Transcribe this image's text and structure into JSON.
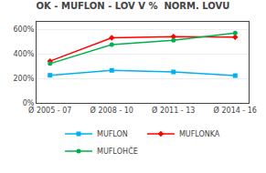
{
  "chart_data": {
    "type": "line",
    "title": "OK - MUFLON - LOV V %  NORM. LOVU",
    "categories": [
      "Ø 2005 - 07",
      "Ø 2008 - 10",
      "Ø 2011 - 13",
      "Ø 2014 - 16"
    ],
    "series": [
      {
        "name": "MUFLON",
        "color": "#00b0f0",
        "marker": "square",
        "values": [
          225,
          265,
          252,
          222
        ]
      },
      {
        "name": "MUFLONKA",
        "color": "#ff0000",
        "marker": "diamond",
        "values": [
          340,
          530,
          540,
          535
        ]
      },
      {
        "name": "MUFLОНČE",
        "color": "#00b050",
        "marker": "circle",
        "values": [
          320,
          475,
          510,
          570
        ]
      }
    ],
    "ylim": [
      0,
      660
    ],
    "yticks": [
      {
        "value": 0,
        "label": "0%"
      },
      {
        "value": 200,
        "label": "200%"
      },
      {
        "value": 400,
        "label": "400%"
      },
      {
        "value": 600,
        "label": "600%"
      }
    ],
    "grid": true,
    "legend": "lower center"
  }
}
